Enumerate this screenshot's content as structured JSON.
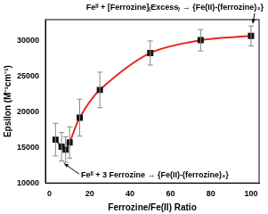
{
  "chart_data": {
    "type": "line",
    "x": [
      3,
      6,
      8,
      10,
      15,
      25,
      50,
      75,
      100
    ],
    "values": [
      16100,
      15100,
      14700,
      15700,
      19200,
      23100,
      28300,
      30100,
      30700
    ],
    "errors": [
      2300,
      2000,
      1800,
      2200,
      2600,
      2500,
      1700,
      1500,
      1400
    ],
    "color": "#e8251f",
    "marker": "square",
    "xlabel": "Ferrozine/Fe(II) Ratio",
    "ylabel": "Epsilon (M⁻¹cm⁻¹)",
    "xlim": [
      -2,
      104
    ],
    "xticks": [
      0,
      20,
      40,
      60,
      80,
      100
    ],
    "ylim": [
      10000,
      33000
    ],
    "yticks": [
      10000,
      15000,
      20000,
      25000,
      30000
    ],
    "grid": false,
    "annotations": [
      {
        "text": "Feᴵᴵ + [Ferrozine]₍Excess₎ → {Fe(II)-(ferrozine)₃}"
      },
      {
        "text": "Feᴵᴵ + 3 Ferrozine → {Fe(II)-(ferrozine)₃}"
      }
    ]
  }
}
